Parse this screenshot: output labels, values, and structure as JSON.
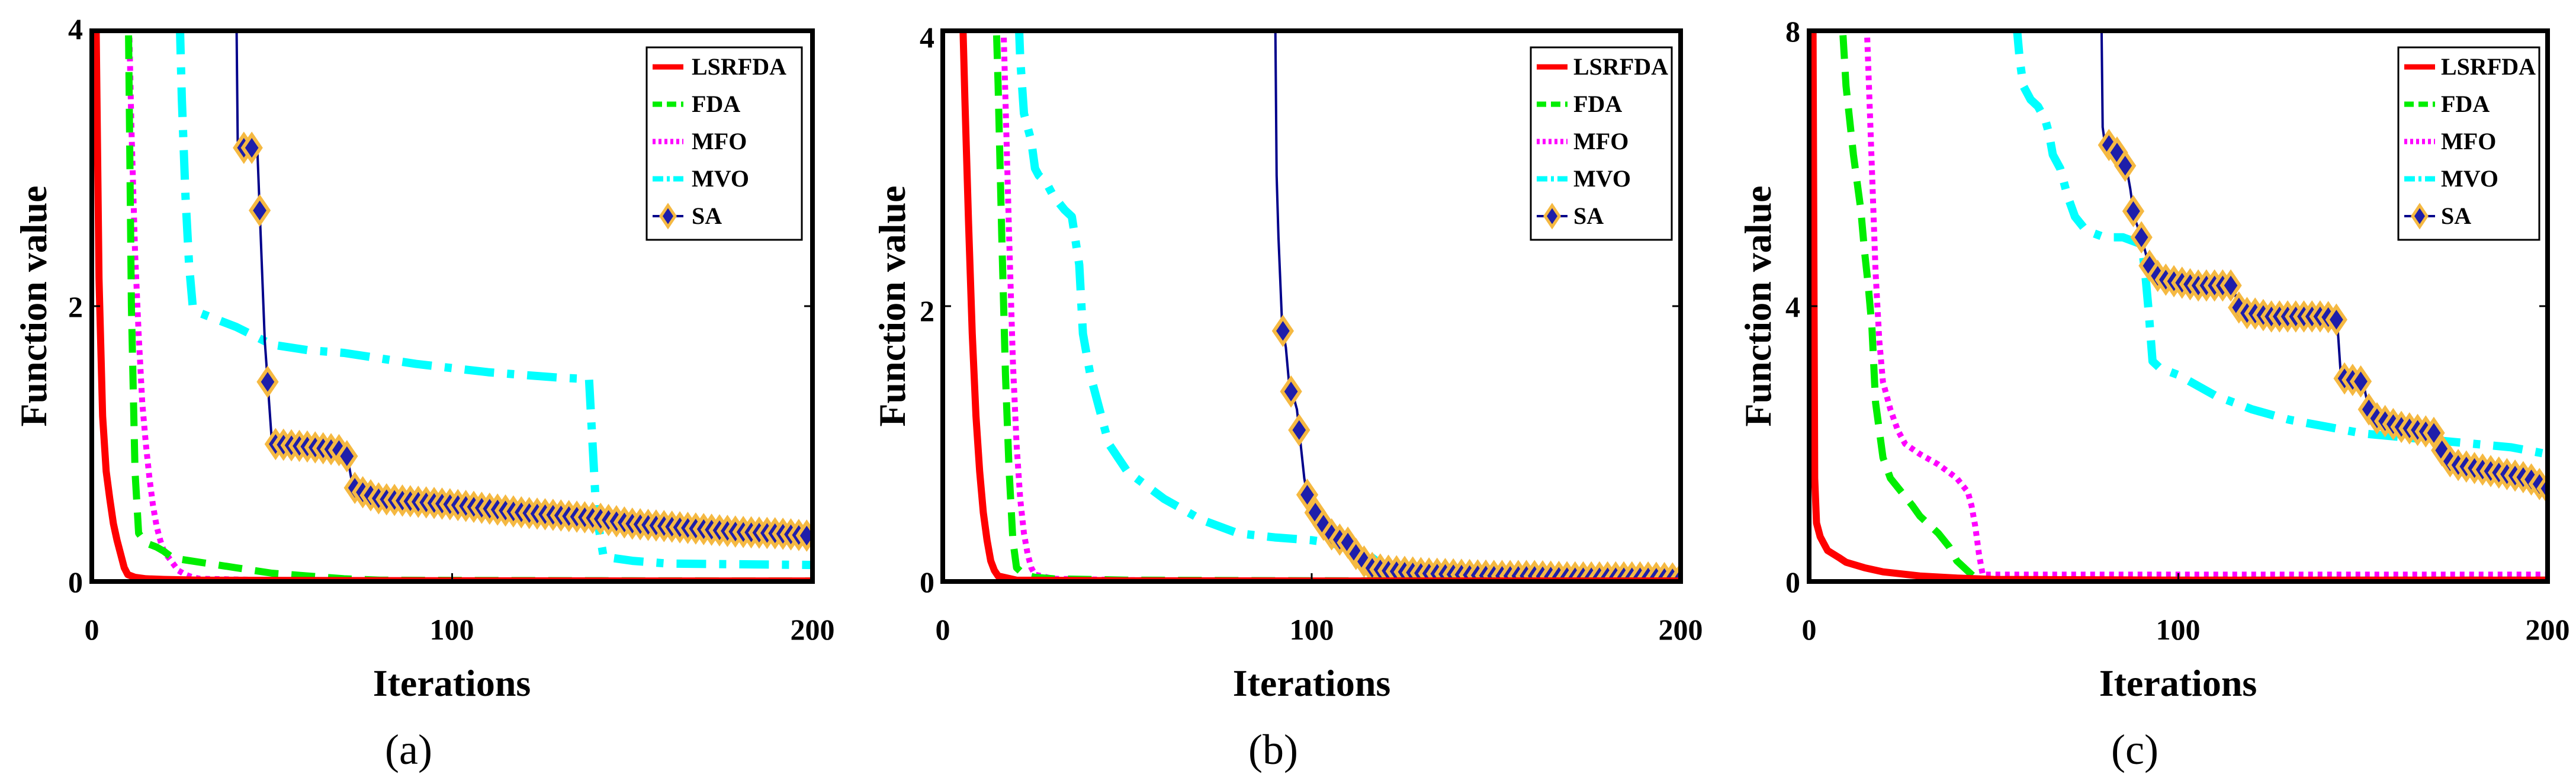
{
  "chart_data": [
    {
      "panel_label": "(a)",
      "type": "line",
      "xlabel": "Iterations",
      "ylabel": "Function value",
      "xlim": [
        0,
        200
      ],
      "ylim": [
        0,
        4
      ],
      "xticks": [
        0,
        100,
        200
      ],
      "yticks": [
        0,
        2,
        4
      ],
      "legend": "top-right",
      "series": [
        {
          "name": "LSRFDA",
          "color": "#ff0000",
          "style": "solid",
          "x": [
            1,
            2,
            3,
            4,
            5,
            6,
            7,
            8,
            9,
            10,
            12,
            15,
            20,
            30,
            50,
            100,
            150,
            200
          ],
          "y": [
            4.5,
            2.2,
            1.2,
            0.8,
            0.6,
            0.42,
            0.3,
            0.2,
            0.1,
            0.05,
            0.03,
            0.02,
            0.015,
            0.01,
            0.008,
            0.005,
            0.004,
            0.004
          ]
        },
        {
          "name": "FDA",
          "color": "#00ee00",
          "style": "dash",
          "x": [
            10,
            11,
            12,
            13,
            15,
            18,
            20,
            22,
            25,
            30,
            35,
            40,
            45,
            50,
            60,
            70,
            80,
            100,
            150,
            200
          ],
          "y": [
            4.5,
            2.0,
            0.8,
            0.35,
            0.28,
            0.25,
            0.22,
            0.18,
            0.16,
            0.14,
            0.12,
            0.1,
            0.08,
            0.06,
            0.04,
            0.02,
            0.01,
            0.008,
            0.005,
            0.004
          ]
        },
        {
          "name": "MFO",
          "color": "#ff00ff",
          "style": "dot",
          "x": [
            10,
            11,
            12,
            13,
            14,
            15,
            16,
            17,
            18,
            19,
            20,
            22,
            24,
            26,
            28,
            30,
            50,
            100,
            200
          ],
          "y": [
            4.5,
            3.3,
            2.4,
            1.8,
            1.3,
            1.0,
            0.75,
            0.55,
            0.4,
            0.3,
            0.22,
            0.15,
            0.08,
            0.05,
            0.03,
            0.02,
            0.01,
            0.005,
            0.004
          ]
        },
        {
          "name": "MVO",
          "color": "#00ffff",
          "style": "dashdot",
          "x": [
            24,
            25,
            26,
            27,
            28,
            30,
            40,
            50,
            60,
            70,
            80,
            90,
            100,
            110,
            120,
            130,
            138,
            140,
            142,
            150,
            160,
            200
          ],
          "y": [
            4.5,
            3.5,
            2.8,
            2.3,
            2.0,
            1.95,
            1.85,
            1.72,
            1.68,
            1.66,
            1.62,
            1.58,
            1.55,
            1.52,
            1.5,
            1.48,
            1.47,
            0.5,
            0.18,
            0.15,
            0.13,
            0.12
          ]
        },
        {
          "name": "SA",
          "color": "#00008b",
          "style": "solid-diamond",
          "x": [
            40,
            40.5,
            41,
            42,
            43,
            45,
            46,
            48,
            50,
            60,
            70,
            71,
            72,
            73,
            75,
            78,
            80,
            90,
            100,
            110,
            120,
            130,
            140,
            150,
            160,
            170,
            180,
            190,
            200
          ],
          "y": [
            4.5,
            3.2,
            3.15,
            3.15,
            3.15,
            3.15,
            3.1,
            1.75,
            1.0,
            0.98,
            0.95,
            0.9,
            0.75,
            0.68,
            0.65,
            0.62,
            0.6,
            0.58,
            0.56,
            0.53,
            0.5,
            0.48,
            0.46,
            0.42,
            0.4,
            0.38,
            0.36,
            0.35,
            0.33
          ]
        }
      ]
    },
    {
      "panel_label": "(b)",
      "type": "line",
      "xlabel": "Iterations",
      "ylabel": "Function value",
      "xlim": [
        0,
        200
      ],
      "ylim": [
        0,
        4
      ],
      "xticks": [
        0,
        100,
        200
      ],
      "yticks": [
        0,
        2,
        4
      ],
      "legend": "top-right",
      "series": [
        {
          "name": "LSRFDA",
          "color": "#ff0000",
          "style": "solid",
          "x": [
            5,
            6,
            7,
            8,
            9,
            10,
            11,
            12,
            13,
            14,
            15,
            20,
            50,
            100,
            200
          ],
          "y": [
            4.5,
            3.5,
            2.6,
            1.8,
            1.2,
            0.8,
            0.5,
            0.3,
            0.15,
            0.08,
            0.04,
            0.01,
            0.005,
            0.004,
            0.004
          ]
        },
        {
          "name": "FDA",
          "color": "#00ee00",
          "style": "dash",
          "x": [
            14,
            15,
            16,
            17,
            18,
            19,
            20,
            22,
            25,
            30,
            50,
            100,
            200
          ],
          "y": [
            4.5,
            3.6,
            2.5,
            1.5,
            0.8,
            0.3,
            0.1,
            0.05,
            0.03,
            0.02,
            0.01,
            0.005,
            0.004
          ]
        },
        {
          "name": "MFO",
          "color": "#ff00ff",
          "style": "dot",
          "x": [
            16,
            17,
            18,
            19,
            20,
            21,
            22,
            23,
            24,
            25,
            30,
            50,
            100,
            200
          ],
          "y": [
            4.5,
            3.5,
            2.5,
            1.6,
            1.0,
            0.6,
            0.35,
            0.2,
            0.1,
            0.05,
            0.02,
            0.01,
            0.005,
            0.004
          ]
        },
        {
          "name": "MVO",
          "color": "#00ffff",
          "style": "dashdot",
          "x": [
            20,
            21,
            22,
            23,
            24,
            25,
            26,
            28,
            30,
            33,
            35,
            37,
            38,
            40,
            45,
            50,
            60,
            70,
            80,
            90,
            100,
            105,
            110,
            115,
            120,
            130,
            150,
            200
          ],
          "y": [
            4.5,
            3.8,
            3.4,
            3.3,
            3.2,
            3.0,
            2.95,
            2.9,
            2.8,
            2.7,
            2.65,
            2.3,
            1.8,
            1.5,
            1.0,
            0.8,
            0.6,
            0.45,
            0.35,
            0.32,
            0.3,
            0.28,
            0.25,
            0.2,
            0.1,
            0.05,
            0.03,
            0.02
          ]
        },
        {
          "name": "SA",
          "color": "#00008b",
          "style": "solid-diamond",
          "x": [
            90,
            90.5,
            91,
            92,
            93,
            94,
            95,
            96,
            97,
            98,
            99,
            100,
            101,
            102,
            103,
            104,
            105,
            106,
            107,
            108,
            109,
            110,
            112,
            114,
            116,
            120,
            130,
            140,
            150,
            160,
            170,
            180,
            190,
            200
          ],
          "y": [
            4.5,
            2.95,
            2.5,
            1.85,
            1.7,
            1.4,
            1.35,
            1.25,
            1.0,
            0.75,
            0.6,
            0.55,
            0.5,
            0.45,
            0.42,
            0.38,
            0.35,
            0.33,
            0.31,
            0.3,
            0.29,
            0.28,
            0.2,
            0.15,
            0.1,
            0.08,
            0.06,
            0.05,
            0.04,
            0.04,
            0.03,
            0.03,
            0.03,
            0.02
          ]
        }
      ]
    },
    {
      "panel_label": "(c)",
      "type": "line",
      "xlabel": "Iterations",
      "ylabel": "Function value",
      "xlim": [
        0,
        200
      ],
      "ylim": [
        0,
        8
      ],
      "xticks": [
        0,
        100,
        200
      ],
      "yticks": [
        0,
        4,
        8
      ],
      "legend": "top-right",
      "series": [
        {
          "name": "LSRFDA",
          "color": "#ff0000",
          "style": "solid",
          "x": [
            1,
            1.5,
            2,
            3,
            4,
            5,
            8,
            10,
            15,
            20,
            30,
            40,
            50,
            100,
            200
          ],
          "y": [
            9,
            1.5,
            0.85,
            0.65,
            0.55,
            0.45,
            0.35,
            0.28,
            0.2,
            0.14,
            0.08,
            0.05,
            0.03,
            0.02,
            0.02
          ]
        },
        {
          "name": "FDA",
          "color": "#00ee00",
          "style": "dash",
          "x": [
            8,
            10,
            12,
            14,
            15,
            16,
            17,
            18,
            20,
            22,
            25,
            28,
            30,
            32,
            35,
            38,
            40,
            42,
            44,
            45,
            46,
            50,
            100,
            200
          ],
          "y": [
            9,
            7.2,
            6.2,
            5.4,
            4.8,
            4.3,
            3.7,
            2.6,
            1.8,
            1.5,
            1.3,
            1.1,
            0.95,
            0.85,
            0.7,
            0.5,
            0.3,
            0.2,
            0.1,
            0.05,
            0.03,
            0.02,
            0.02,
            0.02
          ]
        },
        {
          "name": "MFO",
          "color": "#ff00ff",
          "style": "dot",
          "x": [
            15,
            16,
            17,
            18,
            19,
            20,
            21,
            22,
            24,
            26,
            30,
            35,
            40,
            43,
            44,
            45,
            46,
            47,
            50,
            100,
            200
          ],
          "y": [
            9,
            7.5,
            6,
            4.5,
            3.5,
            2.9,
            2.7,
            2.5,
            2.2,
            2.0,
            1.85,
            1.7,
            1.5,
            1.3,
            1.1,
            0.8,
            0.4,
            0.1,
            0.1,
            0.1,
            0.1
          ]
        },
        {
          "name": "MVO",
          "color": "#00ffff",
          "style": "dashdot",
          "x": [
            55,
            56,
            57,
            58,
            60,
            62,
            64,
            65,
            66,
            68,
            70,
            72,
            75,
            80,
            85,
            90,
            91,
            92,
            93,
            95,
            100,
            110,
            120,
            130,
            140,
            150,
            160,
            170,
            180,
            190,
            200
          ],
          "y": [
            9,
            8.2,
            7.6,
            7.2,
            7.0,
            6.9,
            6.7,
            6.5,
            6.2,
            6.0,
            5.6,
            5.3,
            5.1,
            5.0,
            5.0,
            4.9,
            4.5,
            3.9,
            3.2,
            3.1,
            3.0,
            2.7,
            2.5,
            2.35,
            2.25,
            2.15,
            2.1,
            2.05,
            2.0,
            1.95,
            1.85
          ]
        },
        {
          "name": "SA",
          "color": "#00008b",
          "style": "solid-diamond",
          "x": [
            79,
            79.5,
            80,
            82,
            84,
            86,
            87,
            88,
            90,
            92,
            95,
            100,
            105,
            110,
            115,
            116,
            118,
            120,
            125,
            130,
            135,
            140,
            143,
            144,
            145,
            150,
            152,
            155,
            160,
            165,
            170,
            172,
            175,
            180,
            185,
            190,
            195,
            200
          ],
          "y": [
            9,
            6.6,
            6.4,
            6.3,
            6.2,
            6.0,
            5.7,
            5.3,
            5.0,
            4.6,
            4.4,
            4.35,
            4.3,
            4.3,
            4.3,
            4.0,
            3.9,
            3.9,
            3.85,
            3.85,
            3.85,
            3.85,
            3.8,
            3.0,
            2.95,
            2.9,
            2.4,
            2.35,
            2.25,
            2.2,
            2.15,
            1.8,
            1.7,
            1.65,
            1.6,
            1.55,
            1.5,
            1.35
          ]
        }
      ]
    }
  ]
}
